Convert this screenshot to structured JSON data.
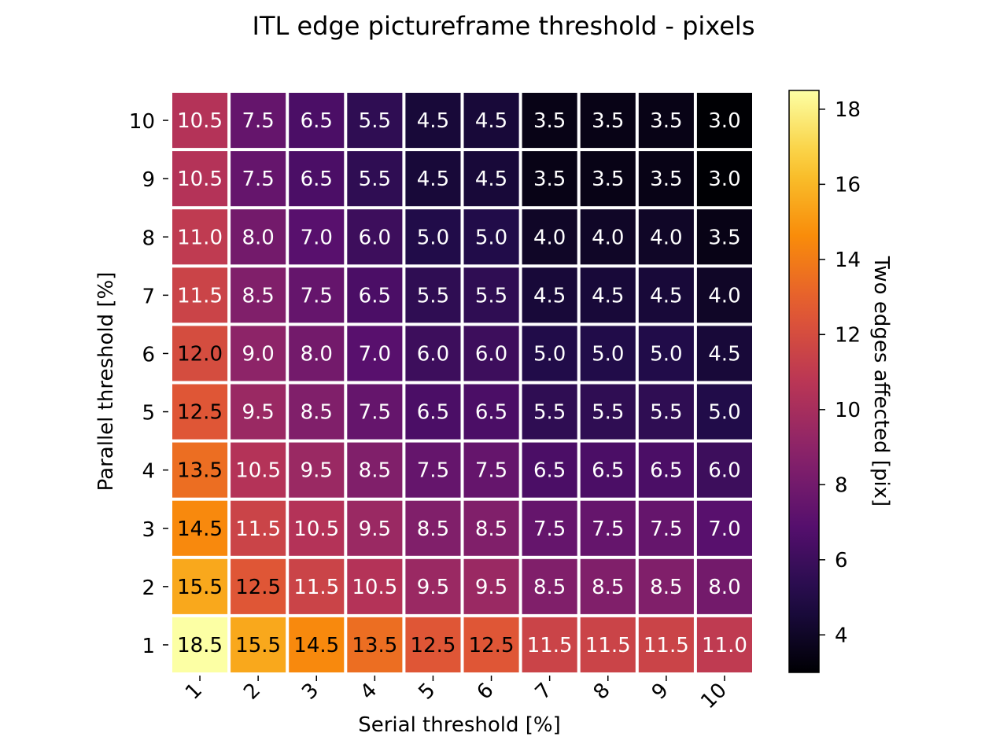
{
  "chart_data": {
    "type": "heatmap",
    "title": "ITL edge pictureframe threshold - pixels",
    "xlabel": "Serial threshold [%]",
    "ylabel": "Parallel threshold [%]",
    "x": [
      "1",
      "2",
      "3",
      "4",
      "5",
      "6",
      "7",
      "8",
      "9",
      "10"
    ],
    "y": [
      "10",
      "9",
      "8",
      "7",
      "6",
      "5",
      "4",
      "3",
      "2",
      "1"
    ],
    "values": [
      [
        10.5,
        7.5,
        6.5,
        5.5,
        4.5,
        4.5,
        3.5,
        3.5,
        3.5,
        3.0
      ],
      [
        10.5,
        7.5,
        6.5,
        5.5,
        4.5,
        4.5,
        3.5,
        3.5,
        3.5,
        3.0
      ],
      [
        11.0,
        8.0,
        7.0,
        6.0,
        5.0,
        5.0,
        4.0,
        4.0,
        4.0,
        3.5
      ],
      [
        11.5,
        8.5,
        7.5,
        6.5,
        5.5,
        5.5,
        4.5,
        4.5,
        4.5,
        4.0
      ],
      [
        12.0,
        9.0,
        8.0,
        7.0,
        6.0,
        6.0,
        5.0,
        5.0,
        5.0,
        4.5
      ],
      [
        12.5,
        9.5,
        8.5,
        7.5,
        6.5,
        6.5,
        5.5,
        5.5,
        5.5,
        5.0
      ],
      [
        13.5,
        10.5,
        9.5,
        8.5,
        7.5,
        7.5,
        6.5,
        6.5,
        6.5,
        6.0
      ],
      [
        14.5,
        11.5,
        10.5,
        9.5,
        8.5,
        8.5,
        7.5,
        7.5,
        7.5,
        7.0
      ],
      [
        15.5,
        12.5,
        11.5,
        10.5,
        9.5,
        9.5,
        8.5,
        8.5,
        8.5,
        8.0
      ],
      [
        18.5,
        15.5,
        14.5,
        13.5,
        12.5,
        12.5,
        11.5,
        11.5,
        11.5,
        11.0
      ]
    ],
    "colorbar": {
      "label": "Two edges affected [pix]",
      "range": [
        3.0,
        18.5
      ],
      "ticks": [
        4,
        6,
        8,
        10,
        12,
        14,
        16,
        18
      ],
      "colormap": "inferno"
    },
    "grid": false,
    "legend": "none"
  }
}
